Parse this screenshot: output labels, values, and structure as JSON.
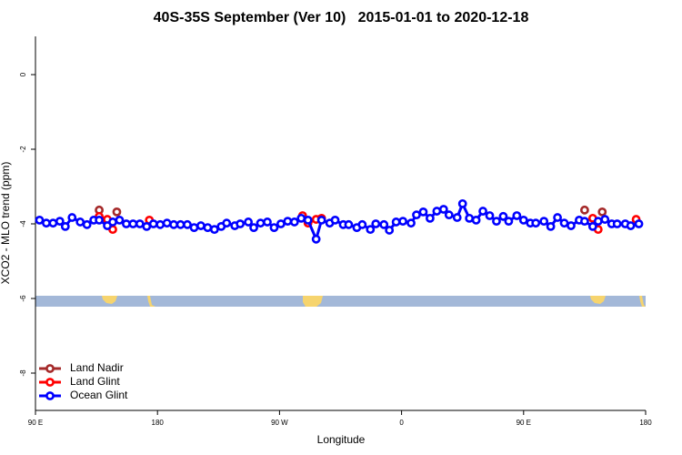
{
  "chart_data": {
    "type": "line",
    "title": "40S-35S September (Ver 10)   2015-01-01 to 2020-12-18",
    "xlabel": "Longitude",
    "ylabel": "XCO2 - MLO trend (ppm)",
    "xlim": [
      90,
      540
    ],
    "xticks": [
      {
        "value": 90,
        "label": "90 E"
      },
      {
        "value": 180,
        "label": "180"
      },
      {
        "value": 270,
        "label": "90 W"
      },
      {
        "value": 360,
        "label": "0"
      },
      {
        "value": 450,
        "label": "90 E"
      },
      {
        "value": 540,
        "label": "180"
      }
    ],
    "ylim": [
      -9,
      1
    ],
    "yticks": [
      0,
      -2,
      -4,
      -6,
      -8
    ],
    "legend": "bottomleft",
    "series": [
      {
        "name": "Land Nadir",
        "color": "#a52a2a",
        "x": [
          137,
          150,
          495,
          508
        ],
        "values": [
          -3.63,
          -3.68,
          -3.63,
          -3.68
        ]
      },
      {
        "name": "Land Glint",
        "color": "#ff0000",
        "x": [
          137,
          143,
          147,
          174,
          287,
          291,
          297,
          301,
          501,
          505,
          533
        ],
        "values": [
          -3.8,
          -3.88,
          -4.15,
          -3.9,
          -3.78,
          -3.98,
          -3.88,
          -3.85,
          -3.85,
          -4.15,
          -3.88
        ]
      },
      {
        "name": "Ocean Glint",
        "color": "#0000ff",
        "x": [
          93,
          98,
          103,
          108,
          112,
          117,
          123,
          128,
          133,
          137,
          143,
          147,
          152,
          157,
          162,
          167,
          172,
          177,
          182,
          187,
          192,
          197,
          202,
          207,
          212,
          217,
          222,
          227,
          231,
          237,
          241,
          247,
          251,
          256,
          261,
          266,
          271,
          276,
          281,
          286,
          291,
          297,
          301,
          307,
          311,
          317,
          321,
          327,
          331,
          337,
          341,
          347,
          351,
          356,
          361,
          367,
          371,
          376,
          381,
          386,
          391,
          395,
          401,
          405,
          410,
          415,
          420,
          425,
          430,
          435,
          439,
          445,
          450,
          455,
          459,
          465,
          470,
          475,
          480,
          485,
          491,
          495,
          501,
          505,
          510,
          515,
          519,
          525,
          529,
          535
        ],
        "values": [
          -3.9,
          -3.98,
          -3.98,
          -3.93,
          -4.07,
          -3.83,
          -3.95,
          -4.02,
          -3.9,
          -3.9,
          -4.05,
          -3.95,
          -3.9,
          -4.0,
          -4.0,
          -4.0,
          -4.07,
          -4.0,
          -4.02,
          -3.98,
          -4.02,
          -4.02,
          -4.02,
          -4.1,
          -4.05,
          -4.1,
          -4.15,
          -4.07,
          -3.98,
          -4.05,
          -4.0,
          -3.95,
          -4.1,
          -3.98,
          -3.95,
          -4.1,
          -4.0,
          -3.93,
          -3.95,
          -3.85,
          -3.9,
          -4.41,
          -3.9,
          -3.98,
          -3.9,
          -4.02,
          -4.02,
          -4.1,
          -4.02,
          -4.15,
          -4.0,
          -4.02,
          -4.17,
          -3.95,
          -3.93,
          -3.98,
          -3.76,
          -3.68,
          -3.85,
          -3.66,
          -3.61,
          -3.76,
          -3.83,
          -3.46,
          -3.85,
          -3.9,
          -3.66,
          -3.78,
          -3.93,
          -3.8,
          -3.93,
          -3.78,
          -3.9,
          -3.98,
          -3.98,
          -3.93,
          -4.07,
          -3.83,
          -3.98,
          -4.05,
          -3.9,
          -3.93,
          -4.07,
          -3.93,
          -3.88,
          -4.0,
          -4.0,
          -4.0,
          -4.05,
          -4.0
        ]
      }
    ]
  }
}
